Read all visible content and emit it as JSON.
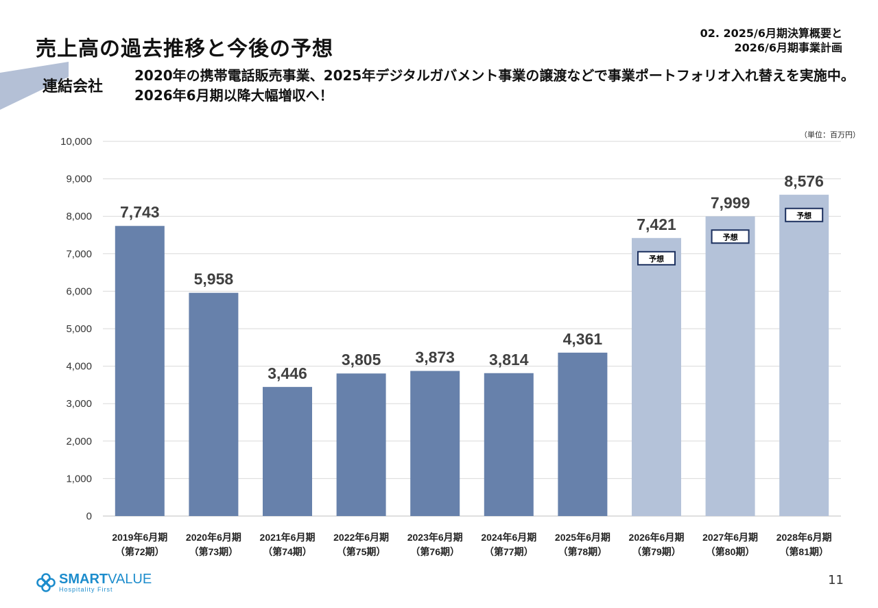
{
  "header": {
    "title": "売上高の過去推移と今後の予想",
    "section_line1": "02. 2025/6月期決算概要と",
    "section_line2": "2026/6月期事業計画"
  },
  "entity_label": "連結会社",
  "headline": "2020年の携帯電話販売事業、2025年デジタルガバメント事業の譲渡などで事業ポートフォリオ入れ替えを実施中。2026年6月期以降大幅増収へ！",
  "unit_label": "（単位：百万円）",
  "colors": {
    "actual": "#6781ab",
    "forecast": "#b4c2d9",
    "stripe": "#b4c0d6",
    "badge_border": "#1b2f5e",
    "logo": "#1c8ccc"
  },
  "chart_data": {
    "type": "bar",
    "title": "",
    "xlabel": "",
    "ylabel": "",
    "ylim": [
      0,
      10000
    ],
    "yticks": [
      0,
      1000,
      2000,
      3000,
      4000,
      5000,
      6000,
      7000,
      8000,
      9000,
      10000
    ],
    "grid": true,
    "categories": [
      [
        "2019年6月期",
        "（第72期）"
      ],
      [
        "2020年6月期",
        "（第73期）"
      ],
      [
        "2021年6月期",
        "（第74期）"
      ],
      [
        "2022年6月期",
        "（第75期）"
      ],
      [
        "2023年6月期",
        "（第76期）"
      ],
      [
        "2024年6月期",
        "（第77期）"
      ],
      [
        "2025年6月期",
        "（第78期）"
      ],
      [
        "2026年6月期",
        "（第79期）"
      ],
      [
        "2027年6月期",
        "（第80期）"
      ],
      [
        "2028年6月期",
        "（第81期）"
      ]
    ],
    "values": [
      7743,
      5958,
      3446,
      3805,
      3873,
      3814,
      4361,
      7421,
      7999,
      8576
    ],
    "forecast": [
      false,
      false,
      false,
      false,
      false,
      false,
      false,
      true,
      true,
      true
    ],
    "forecast_badge": "予想"
  },
  "footer": {
    "logo_name_bold": "SMART",
    "logo_name_rest": "VALUE",
    "logo_tagline": "Hospitality First",
    "page_number": "11"
  }
}
